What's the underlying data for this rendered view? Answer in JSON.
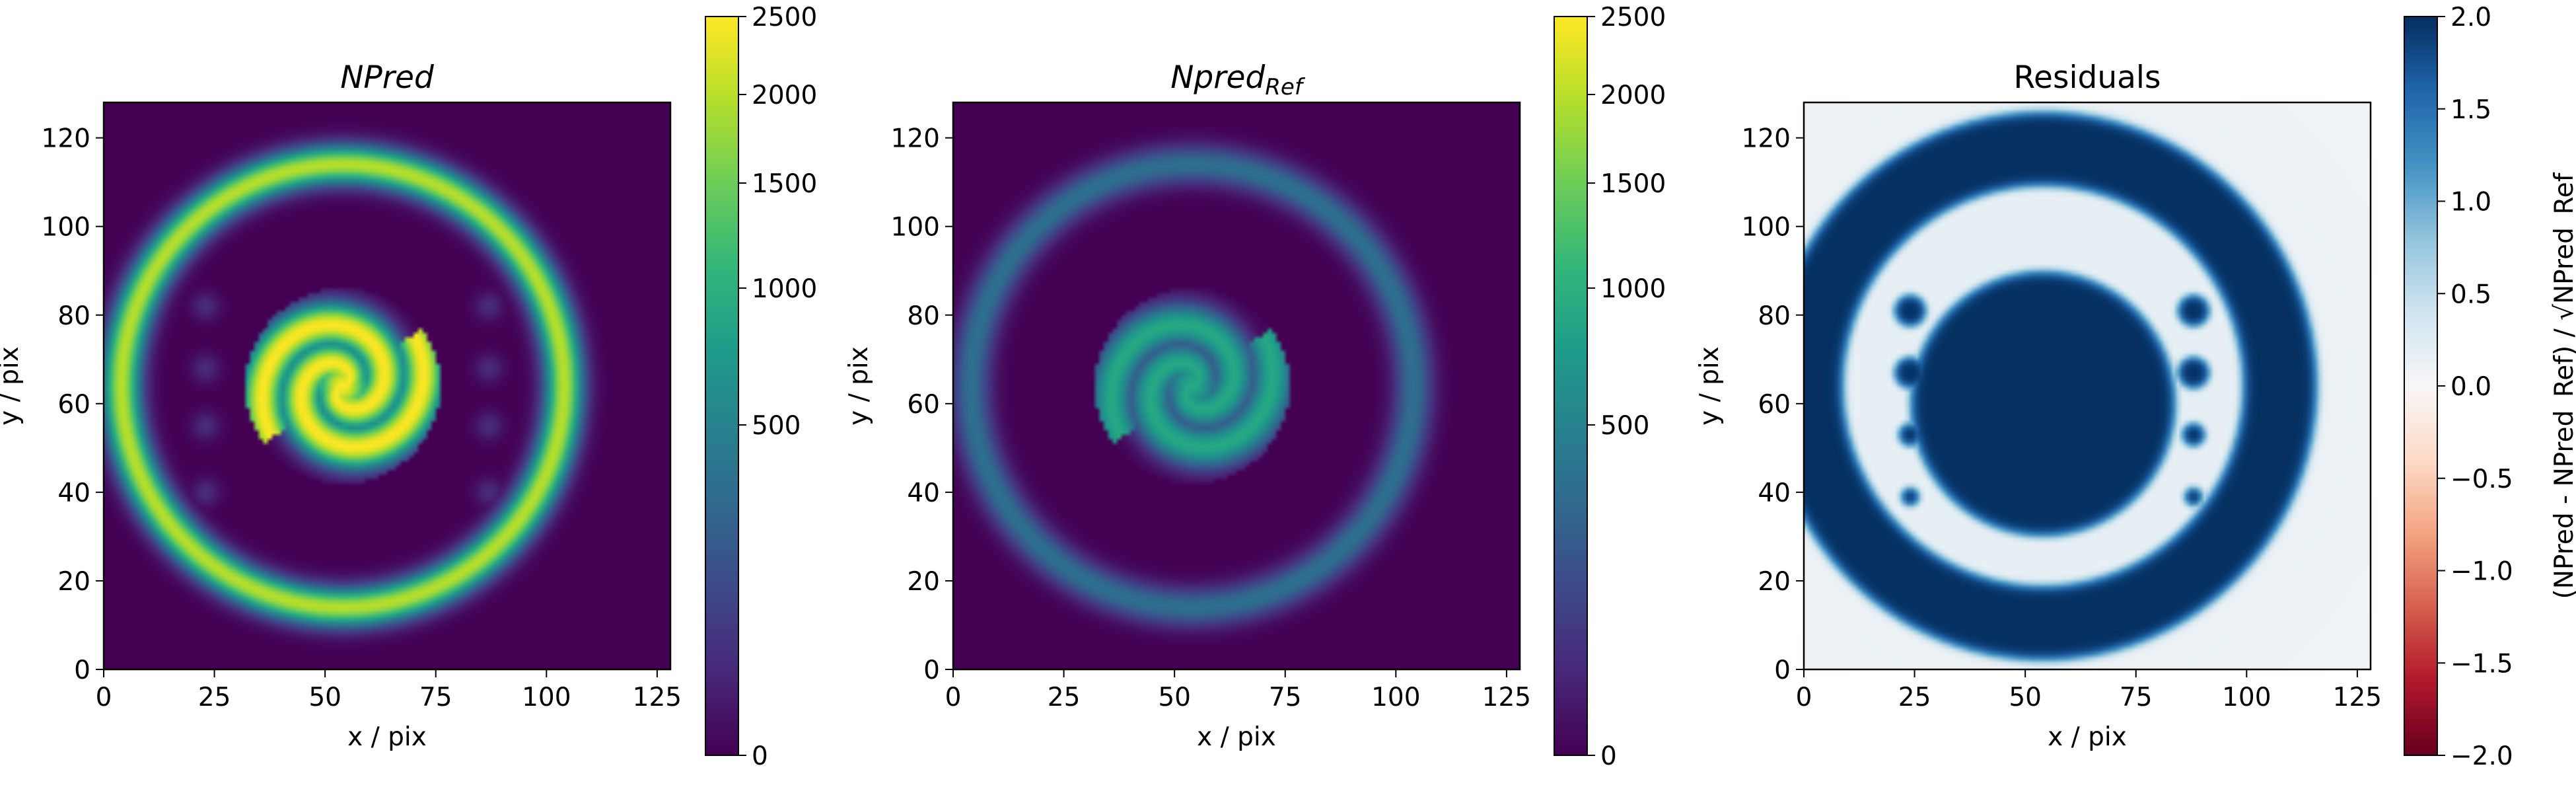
{
  "colors": {
    "viridis_low": "#440154",
    "viridis_high": "#fde725",
    "rdbu_low": "#67001f",
    "rdbu_mid": "#f7f7f7",
    "rdbu_high": "#053061"
  },
  "chart_data": [
    {
      "type": "heatmap",
      "title": "NPred",
      "xlabel": "x / pix",
      "ylabel": "y / pix",
      "xlim": [
        0,
        128
      ],
      "ylim": [
        0,
        128
      ],
      "xticks": [
        "0",
        "25",
        "50",
        "75",
        "100",
        "125"
      ],
      "yticks": [
        "0",
        "20",
        "40",
        "60",
        "80",
        "100",
        "120"
      ],
      "colormap": "viridis",
      "colorbar": {
        "scale": "sqrt",
        "range": [
          0,
          2500
        ],
        "ticks": [
          "0",
          "500",
          "1000",
          "1500",
          "2000",
          "2500"
        ],
        "label": ""
      },
      "features": {
        "ring": {
          "center": [
            54,
            64
          ],
          "radius": 50,
          "value": 2000
        },
        "spiral": {
          "center": [
            54,
            64
          ],
          "value": 2500
        },
        "faint_sources": [
          [
            23,
            82
          ],
          [
            23,
            68
          ],
          [
            23,
            55
          ],
          [
            23,
            40
          ],
          [
            87,
            82
          ],
          [
            87,
            68
          ],
          [
            87,
            55
          ],
          [
            87,
            40
          ]
        ]
      }
    },
    {
      "type": "heatmap",
      "title": "Npred",
      "title_subscript": "Ref",
      "xlabel": "x / pix",
      "ylabel": "y / pix",
      "xlim": [
        0,
        128
      ],
      "ylim": [
        0,
        128
      ],
      "xticks": [
        "0",
        "25",
        "50",
        "75",
        "100",
        "125"
      ],
      "yticks": [
        "0",
        "20",
        "40",
        "60",
        "80",
        "100",
        "120"
      ],
      "colormap": "viridis",
      "colorbar": {
        "scale": "sqrt",
        "range": [
          0,
          2500
        ],
        "ticks": [
          "0",
          "500",
          "1000",
          "1500",
          "2000",
          "2500"
        ],
        "label": ""
      },
      "features": {
        "ring": {
          "center": [
            54,
            64
          ],
          "radius": 50,
          "value": 330
        },
        "spiral": {
          "center": [
            54,
            64
          ],
          "value": 900
        }
      }
    },
    {
      "type": "heatmap",
      "title": "Residuals",
      "xlabel": "x / pix",
      "ylabel": "y / pix",
      "xlim": [
        0,
        128
      ],
      "ylim": [
        0,
        128
      ],
      "xticks": [
        "0",
        "25",
        "50",
        "75",
        "100",
        "125"
      ],
      "yticks": [
        "0",
        "20",
        "40",
        "60",
        "80",
        "100",
        "120"
      ],
      "colormap": "RdBu",
      "colorbar": {
        "scale": "linear",
        "range": [
          -2.0,
          2.0
        ],
        "ticks": [
          "2.0",
          "1.5",
          "1.0",
          "0.5",
          "0.0",
          "−0.5",
          "−1.0",
          "−1.5",
          "−2.0"
        ],
        "label": "(NPred - NPred_Ref) / √NPred_Ref"
      },
      "features": {
        "outer_ring": {
          "center": [
            54,
            64
          ],
          "inner_radius": 45,
          "outer_radius": 62,
          "value": 2.0
        },
        "central_disk": {
          "center": [
            54,
            60
          ],
          "radius": 30,
          "value": 2.0
        },
        "blobs": [
          [
            24,
            81
          ],
          [
            24,
            67
          ],
          [
            24,
            53
          ],
          [
            24,
            39
          ],
          [
            88,
            81
          ],
          [
            88,
            67
          ],
          [
            88,
            53
          ],
          [
            88,
            39
          ]
        ],
        "background": 0.2
      }
    }
  ]
}
